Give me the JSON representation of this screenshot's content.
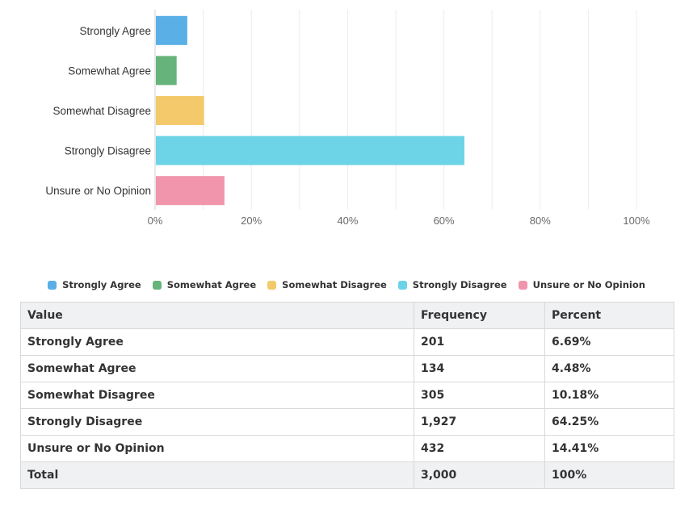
{
  "chart_data": {
    "type": "bar",
    "orientation": "horizontal",
    "categories": [
      "Strongly Agree",
      "Somewhat Agree",
      "Somewhat Disagree",
      "Strongly Disagree",
      "Unsure or No Opinion"
    ],
    "values": [
      6.69,
      4.48,
      10.18,
      64.25,
      14.41
    ],
    "colors": [
      "#5aafe6",
      "#67b37c",
      "#f3c96b",
      "#6dd3e6",
      "#f095ab"
    ],
    "xticks": [
      "0%",
      "20%",
      "40%",
      "60%",
      "80%",
      "100%"
    ],
    "xlim": [
      0,
      100
    ],
    "grid": true
  },
  "legend": [
    {
      "label": "Strongly Agree",
      "color": "#5aafe6"
    },
    {
      "label": "Somewhat Agree",
      "color": "#67b37c"
    },
    {
      "label": "Somewhat Disagree",
      "color": "#f3c96b"
    },
    {
      "label": "Strongly Disagree",
      "color": "#6dd3e6"
    },
    {
      "label": "Unsure or No Opinion",
      "color": "#f095ab"
    }
  ],
  "table": {
    "headers": {
      "value": "Value",
      "frequency": "Frequency",
      "percent": "Percent"
    },
    "rows": [
      {
        "value": "Strongly Agree",
        "frequency": "201",
        "percent": "6.69%"
      },
      {
        "value": "Somewhat Agree",
        "frequency": "134",
        "percent": "4.48%"
      },
      {
        "value": "Somewhat Disagree",
        "frequency": "305",
        "percent": "10.18%"
      },
      {
        "value": "Strongly Disagree",
        "frequency": "1,927",
        "percent": "64.25%"
      },
      {
        "value": "Unsure or No Opinion",
        "frequency": "432",
        "percent": "14.41%"
      }
    ],
    "total": {
      "value": "Total",
      "frequency": "3,000",
      "percent": "100%"
    }
  }
}
